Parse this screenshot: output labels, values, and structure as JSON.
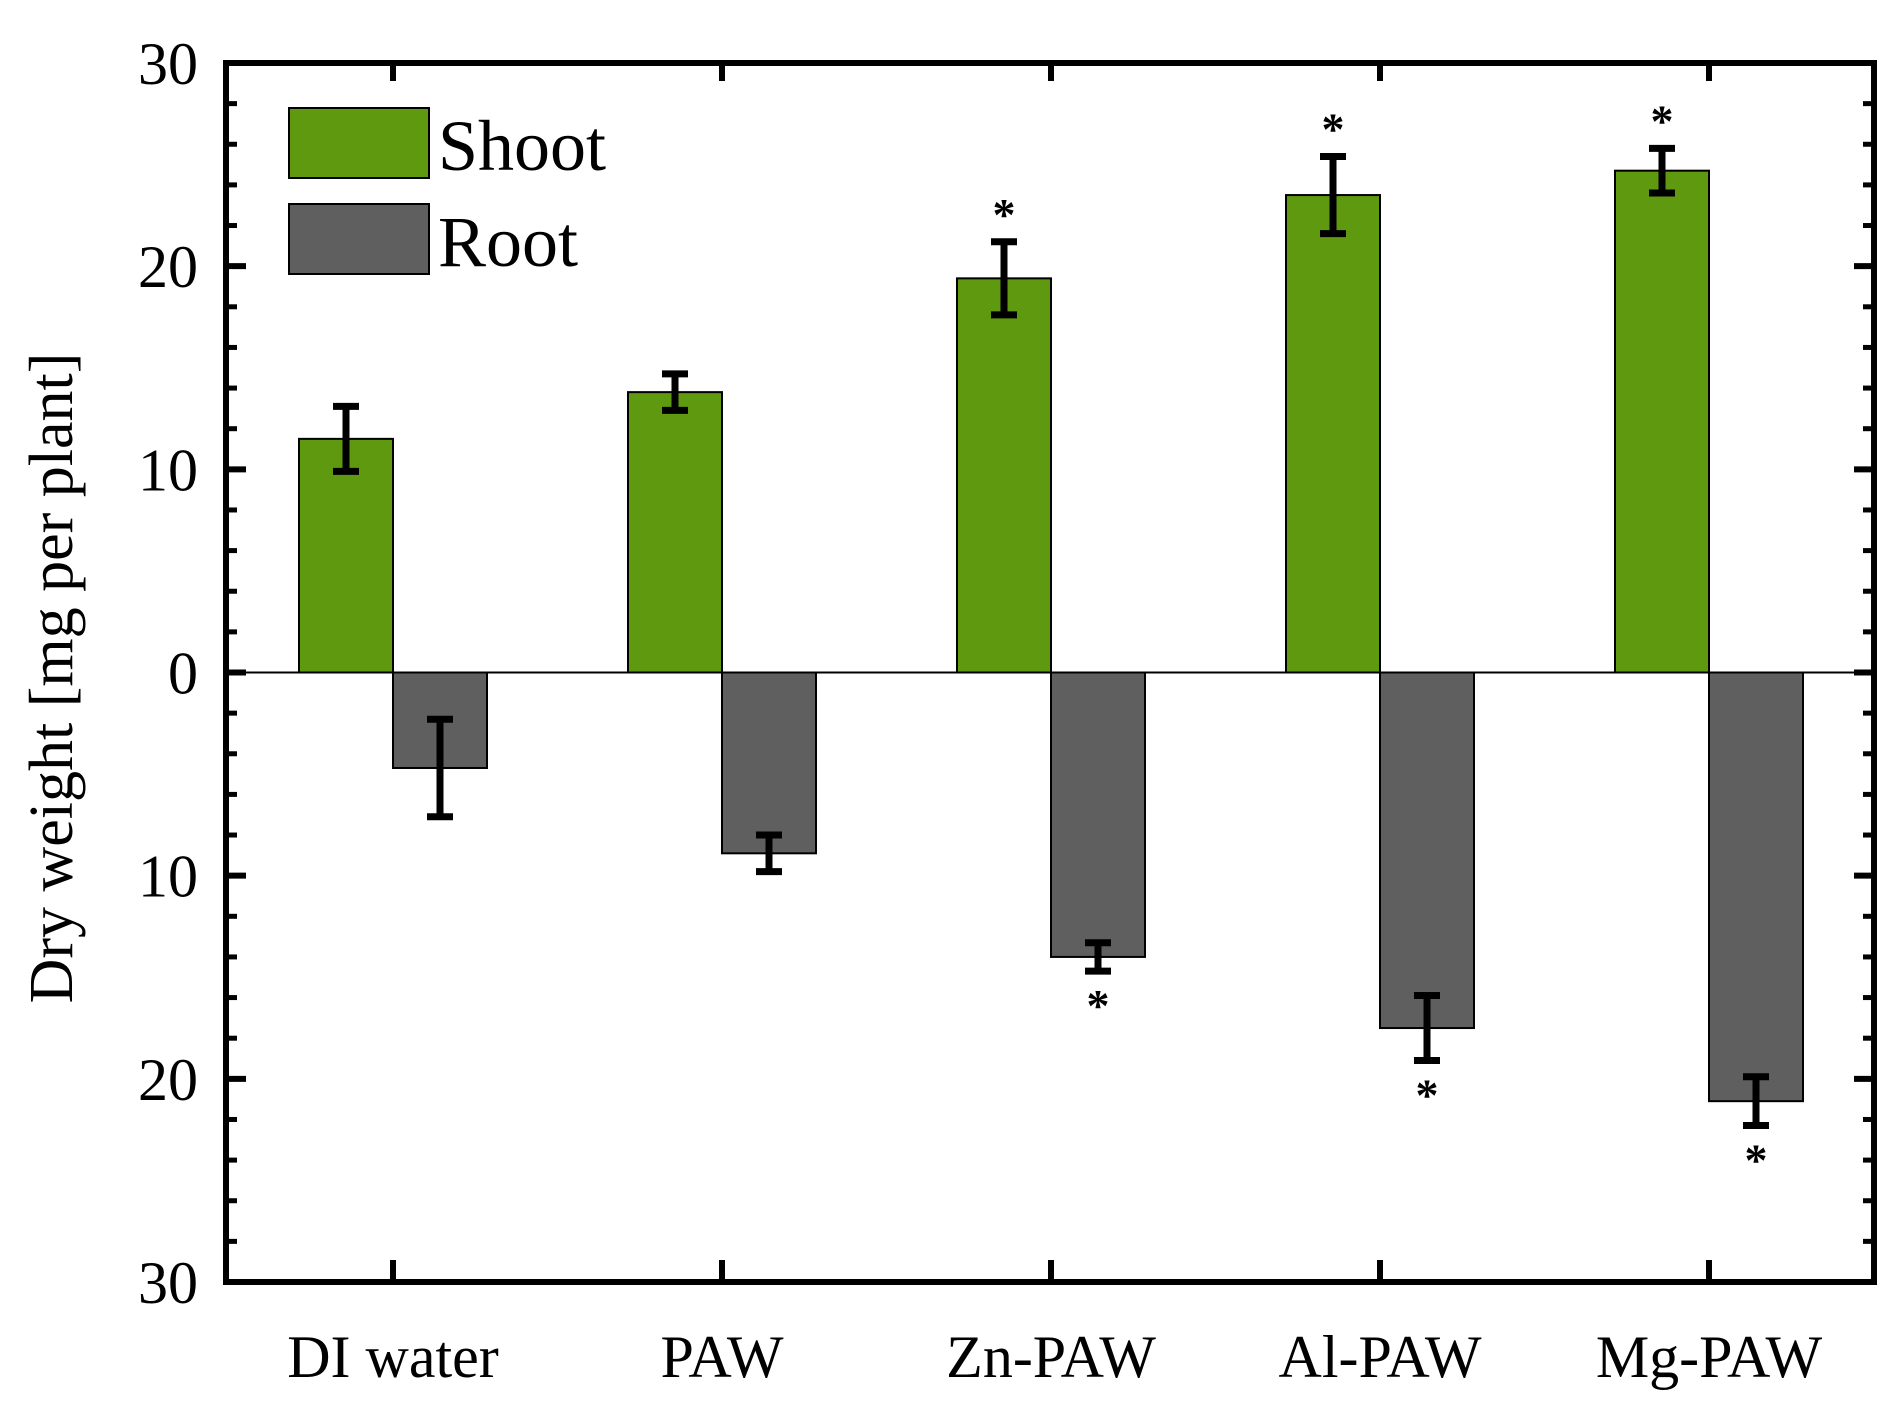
{
  "chart_data": {
    "type": "bar",
    "title": "",
    "xlabel": "",
    "ylabel": "Dry weight [mg per plant]",
    "ylim": [
      -30,
      30
    ],
    "yticks": [
      30,
      20,
      10,
      0,
      -10,
      -20,
      -30
    ],
    "ytick_labels": [
      "30",
      "20",
      "10",
      "0",
      "10",
      "20",
      "30"
    ],
    "categories": [
      "DI water",
      "PAW",
      "Zn-PAW",
      "Al-PAW",
      "Mg-PAW"
    ],
    "series": [
      {
        "name": "Shoot",
        "color": "#5f9910",
        "values": [
          11.5,
          13.8,
          19.4,
          23.5,
          24.7
        ],
        "errors": [
          1.6,
          0.9,
          1.8,
          1.9,
          1.1
        ],
        "significance": [
          "",
          "",
          "*",
          "*",
          "*"
        ]
      },
      {
        "name": "Root",
        "color": "#5f5f5f",
        "values": [
          -4.7,
          -8.9,
          -14.0,
          -17.5,
          -21.1
        ],
        "errors": [
          2.4,
          0.9,
          0.7,
          1.6,
          1.2
        ],
        "significance": [
          "",
          "",
          "*",
          "*",
          "*"
        ]
      }
    ],
    "legend": {
      "position": "top-left",
      "entries": [
        "Shoot",
        "Root"
      ]
    },
    "grid": false
  }
}
